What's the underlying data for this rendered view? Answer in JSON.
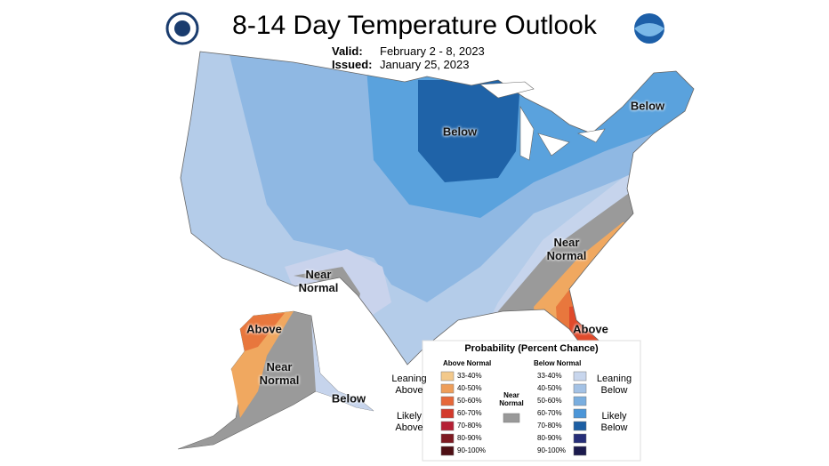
{
  "header": {
    "title": "8-14 Day Temperature Outlook",
    "valid_label": "Valid:",
    "valid": "February 2 - 8, 2023",
    "issued_label": "Issued:",
    "issued": "January 25, 2023"
  },
  "map_labels": [
    "Below",
    "Below",
    "Near Normal",
    "Near Normal",
    "Above",
    "Above",
    "Near Normal",
    "Below"
  ],
  "legend": {
    "title": "Probability (Percent Chance)",
    "above_header": "Above Normal",
    "below_header": "Below Normal",
    "above_groups": [
      "Leaning Above",
      "Likely Above"
    ],
    "below_groups": [
      "Leaning Below",
      "Likely Below"
    ],
    "near_normal": "Near Normal",
    "near_color": "#999999",
    "above_bins": [
      {
        "label": "33-40%",
        "color": "#f3c98b"
      },
      {
        "label": "40-50%",
        "color": "#ee9e5a"
      },
      {
        "label": "50-60%",
        "color": "#e6683a"
      },
      {
        "label": "60-70%",
        "color": "#d33a2c"
      },
      {
        "label": "70-80%",
        "color": "#b52034"
      },
      {
        "label": "80-90%",
        "color": "#7e1a22"
      },
      {
        "label": "90-100%",
        "color": "#4e0f14"
      }
    ],
    "below_bins": [
      {
        "label": "33-40%",
        "color": "#c8d6ed"
      },
      {
        "label": "40-50%",
        "color": "#a4c2e5"
      },
      {
        "label": "50-60%",
        "color": "#7aaedf"
      },
      {
        "label": "60-70%",
        "color": "#4c96d8"
      },
      {
        "label": "70-80%",
        "color": "#1c5ea3"
      },
      {
        "label": "80-90%",
        "color": "#262e78"
      },
      {
        "label": "90-100%",
        "color": "#1b1a4d"
      }
    ]
  }
}
